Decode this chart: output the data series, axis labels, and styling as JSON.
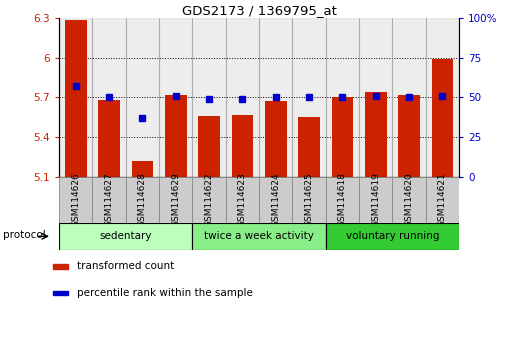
{
  "title": "GDS2173 / 1369795_at",
  "samples": [
    "GSM114626",
    "GSM114627",
    "GSM114628",
    "GSM114629",
    "GSM114622",
    "GSM114623",
    "GSM114624",
    "GSM114625",
    "GSM114618",
    "GSM114619",
    "GSM114620",
    "GSM114621"
  ],
  "transformed_count": [
    6.28,
    5.68,
    5.22,
    5.72,
    5.56,
    5.57,
    5.67,
    5.55,
    5.7,
    5.74,
    5.72,
    5.99
  ],
  "percentile_rank": [
    57,
    50,
    37,
    51,
    49,
    49,
    50,
    50,
    50,
    51,
    50,
    51
  ],
  "ylim_left": [
    5.1,
    6.3
  ],
  "ylim_right": [
    0,
    100
  ],
  "yticks_left": [
    5.1,
    5.4,
    5.7,
    6.0,
    6.3
  ],
  "yticks_right": [
    0,
    25,
    50,
    75,
    100
  ],
  "ytick_labels_left": [
    "5.1",
    "5.4",
    "5.7",
    "6",
    "6.3"
  ],
  "ytick_labels_right": [
    "0",
    "25",
    "50",
    "75",
    "100%"
  ],
  "bar_color": "#cc2200",
  "dot_color": "#0000cc",
  "bar_baseline": 5.1,
  "groups": [
    {
      "label": "sedentary",
      "start": 0,
      "end": 4,
      "color": "#bbffbb"
    },
    {
      "label": "twice a week activity",
      "start": 4,
      "end": 8,
      "color": "#88ee88"
    },
    {
      "label": "voluntary running",
      "start": 8,
      "end": 12,
      "color": "#33cc33"
    }
  ],
  "protocol_label": "protocol",
  "legend_items": [
    {
      "color": "#cc2200",
      "label": "transformed count"
    },
    {
      "color": "#0000cc",
      "label": "percentile rank within the sample"
    }
  ],
  "left_tick_color": "#cc2200",
  "right_tick_color": "#0000cc",
  "sample_box_color": "#cccccc",
  "grid_values": [
    5.4,
    5.7,
    6.0
  ]
}
